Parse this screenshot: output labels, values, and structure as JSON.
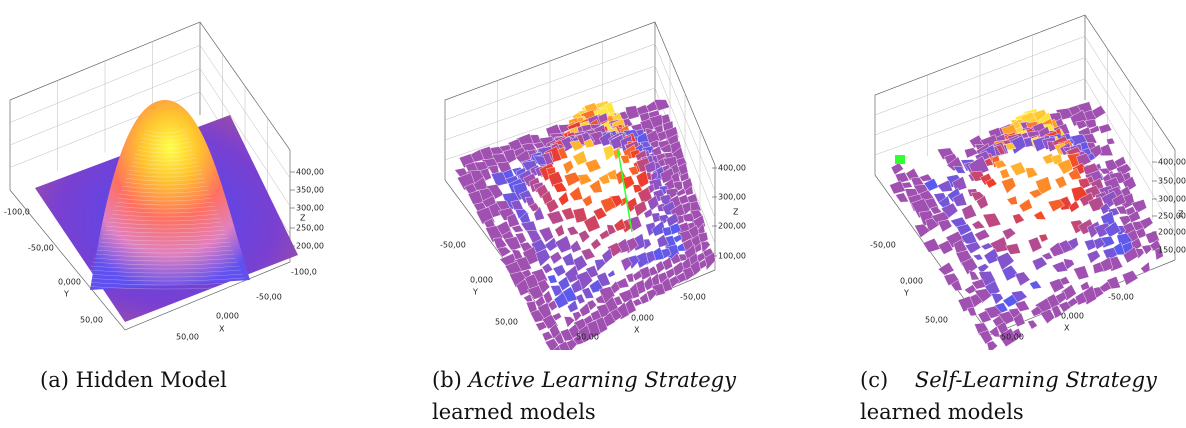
{
  "panels": [
    {
      "caption": {
        "label": "(a)",
        "text": "Hidden Model"
      },
      "axes": {
        "y_ticks": [
          "-100,0",
          "-50,00",
          "0,000",
          "50,00"
        ],
        "y_label": "Y",
        "x_ticks": [
          "50,00",
          "0,000",
          "-50,00",
          "-100,0"
        ],
        "x_label": "X",
        "z_ticks": [
          "400,00",
          "350,00",
          "300,00",
          "250,00",
          "200,00"
        ],
        "z_label": "Z"
      }
    },
    {
      "caption": {
        "label": "(b)",
        "emphasis": "Active Learning Strategy",
        "rest": "learned models"
      },
      "axes": {
        "y_ticks": [
          "-50,00",
          "0,000",
          "50,00"
        ],
        "y_label": "Y",
        "x_ticks": [
          "50,00",
          "0,000",
          "-50,00"
        ],
        "x_label": "X",
        "z_ticks": [
          "400,00",
          "300,00",
          "200,00",
          "100,00"
        ],
        "z_label": "Z"
      }
    },
    {
      "caption": {
        "label": "(c)",
        "emphasis": "Self-Learning Strategy",
        "rest": "learned models"
      },
      "axes": {
        "y_ticks": [
          "-50,00",
          "0,000",
          "50,00"
        ],
        "y_label": "Y",
        "x_ticks": [
          "50,00",
          "0,000",
          "-50,00"
        ],
        "x_label": "X",
        "z_ticks": [
          "400,00",
          "350,00",
          "300,00",
          "250,00",
          "200,00",
          "150,00"
        ],
        "z_label": "Z"
      }
    }
  ]
}
